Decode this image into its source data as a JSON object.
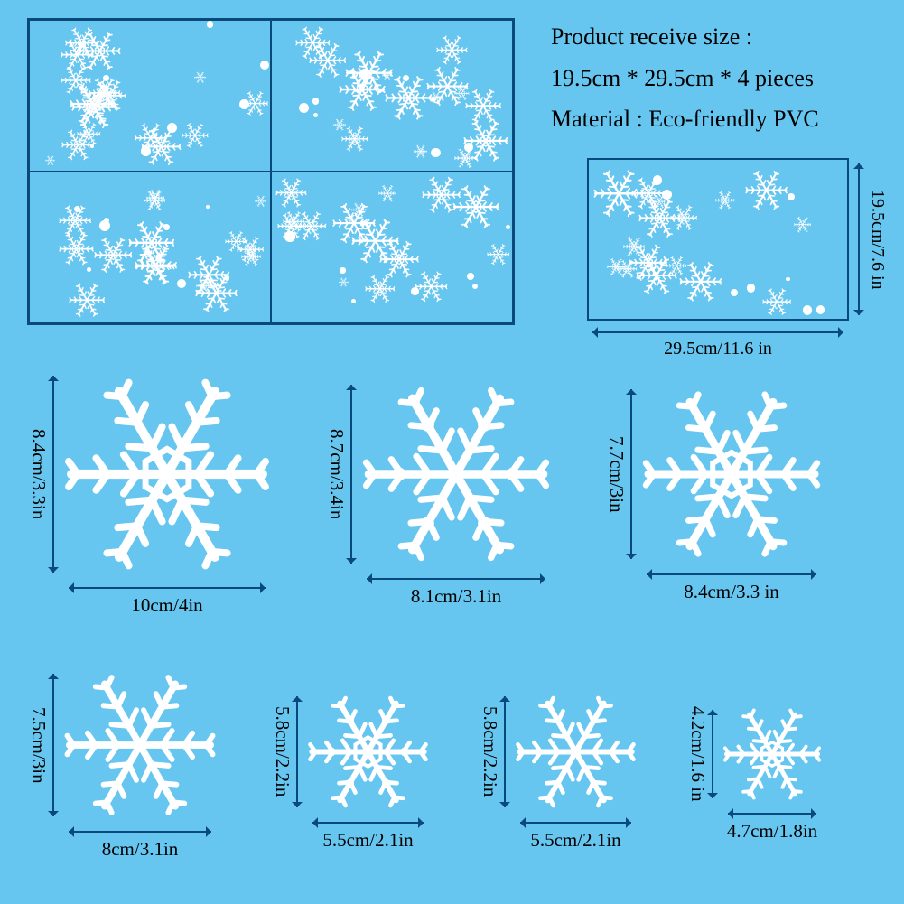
{
  "background_color": "#66c6f0",
  "border_color": "#0a4a7a",
  "snowflake_color": "#ffffff",
  "text_color": "#000000",
  "font_family": "Times New Roman",
  "product": {
    "title": "Product receive size :",
    "size_line": "19.5cm * 29.5cm * 4 pieces",
    "material_label": "Material :",
    "material_value": "Eco-friendly PVC"
  },
  "single_sheet": {
    "width_label": "29.5cm/11.6 in",
    "height_label": "19.5cm/7.6 in"
  },
  "flakes_row1": [
    {
      "w_label": "10cm/4in",
      "h_label": "8.4cm/3.3in",
      "size": 230
    },
    {
      "w_label": "8.1cm/3.1in",
      "h_label": "8.7cm/3.4in",
      "size": 210
    },
    {
      "w_label": "8.4cm/3.3 in",
      "h_label": "7.7cm/3in",
      "size": 200
    }
  ],
  "flakes_row2": [
    {
      "w_label": "8cm/3.1in",
      "h_label": "7.5cm/3in",
      "size": 170
    },
    {
      "w_label": "5.5cm/2.1in",
      "h_label": "5.8cm/2.2in",
      "size": 135
    },
    {
      "w_label": "5.5cm/2.1in",
      "h_label": "5.8cm/2.2in",
      "size": 135
    },
    {
      "w_label": "4.7cm/1.8in",
      "h_label": "4.2cm/1.6 in",
      "size": 110
    }
  ],
  "label_fontsize": 21,
  "product_fontsize": 26
}
